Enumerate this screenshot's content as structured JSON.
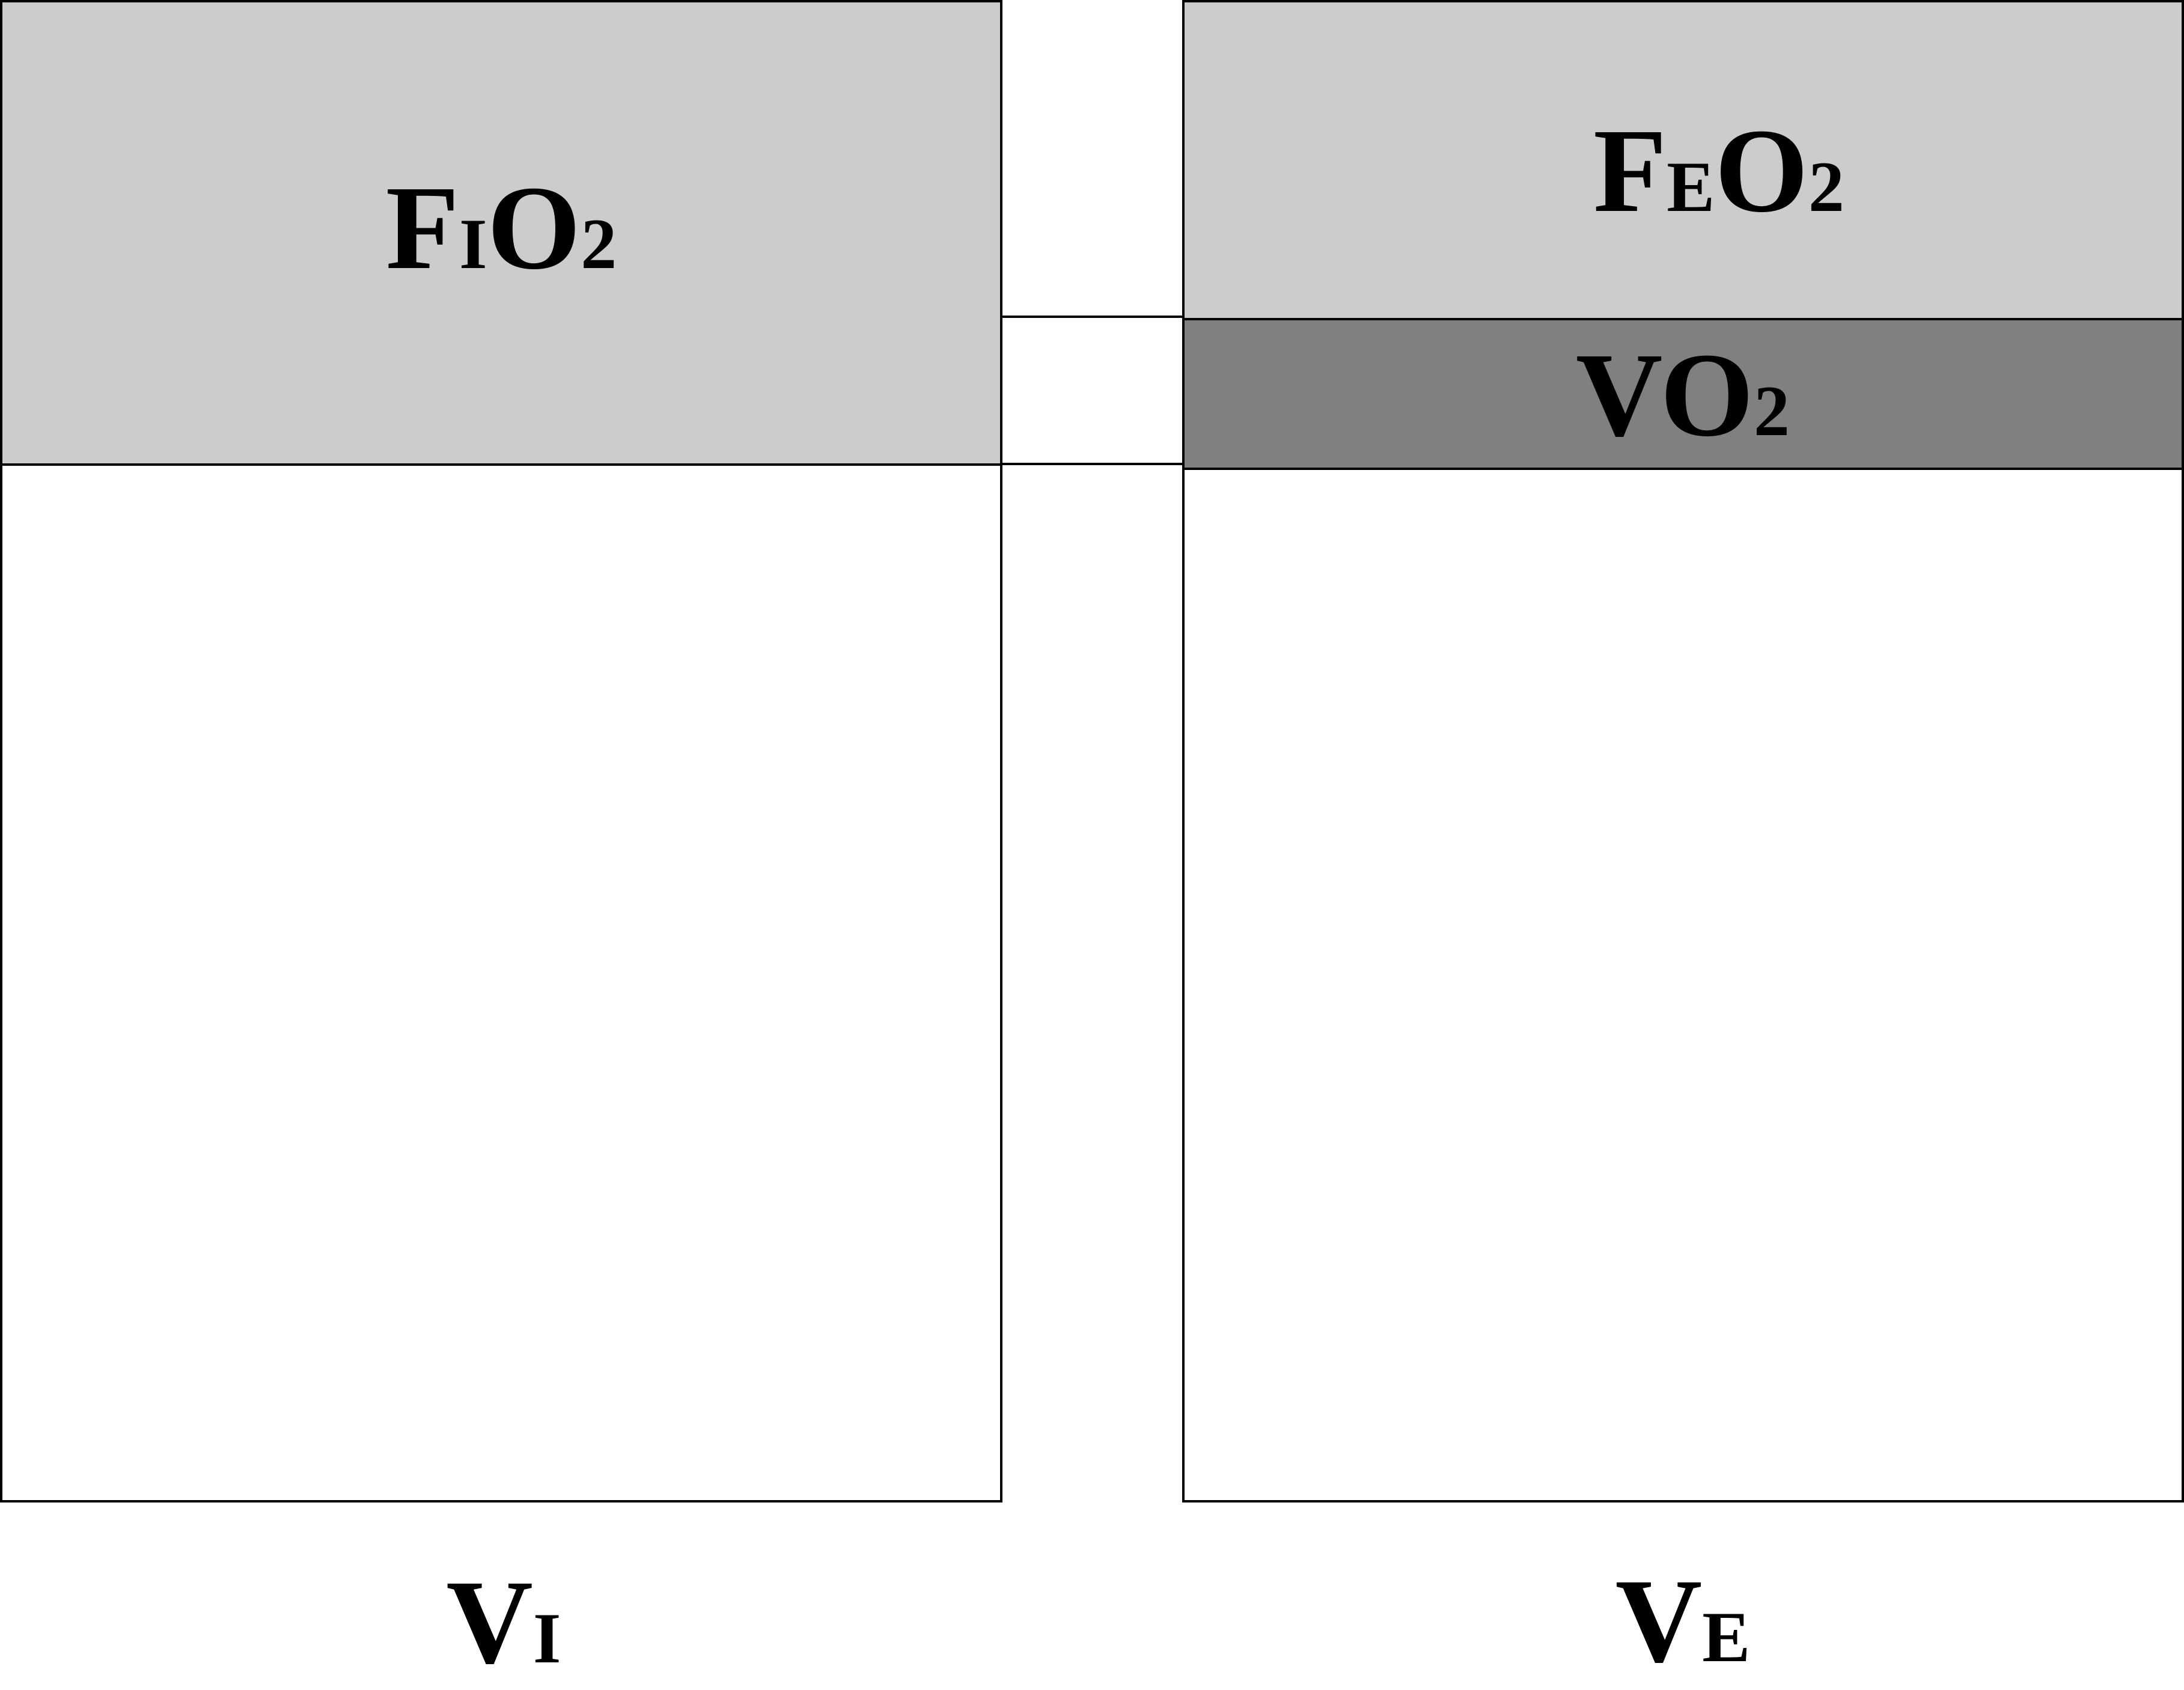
{
  "diagram": {
    "labels": {
      "inspired_fraction": {
        "main": "F",
        "sub": "I",
        "rest": "O",
        "subscript2": "2"
      },
      "expired_fraction": {
        "main": "F",
        "sub": "E",
        "rest": "O",
        "subscript2": "2"
      },
      "oxygen_uptake": {
        "main": "VO",
        "subscript2": "2"
      },
      "inspired_volume": {
        "main": "V",
        "sub": "I"
      },
      "expired_volume": {
        "main": "V",
        "sub": "E"
      }
    },
    "colors": {
      "light_band": "#cccccc",
      "dark_band": "#808080",
      "outline": "#000000",
      "background": "#ffffff"
    }
  }
}
